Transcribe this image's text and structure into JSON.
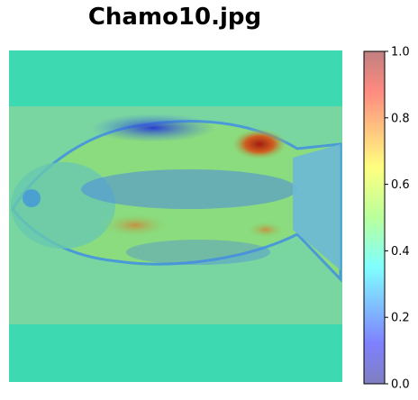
{
  "title": "Chamo10.jpg",
  "chart_data": {
    "type": "heatmap",
    "title": "Chamo10.jpg",
    "image_description": "Fish photograph overlaid with a jet-colormap activation heatmap (alpha ~0.5)",
    "colorbar": {
      "colormap": "jet",
      "alpha": 0.5,
      "range": [
        0.0,
        1.0
      ],
      "ticks": [
        0.0,
        0.2,
        0.4,
        0.6,
        0.8,
        1.0
      ],
      "tick_labels": [
        "0.0",
        "0.2",
        "0.4",
        "0.6",
        "0.8",
        "1.0"
      ]
    },
    "hotspots": [
      {
        "region": "dorsal area behind head (upper back near tail)",
        "value": 0.95
      },
      {
        "region": "mid body lower section",
        "value": 0.8
      },
      {
        "region": "lower rear fin area",
        "value": 0.75
      },
      {
        "region": "dorsal fin top",
        "value": 0.1
      }
    ],
    "background_value": 0.4,
    "axes_visible": false
  },
  "colors": {
    "background_overlay": "#3dd9b0",
    "body_green": "#7ee07a",
    "hot_red": "#b0301e",
    "cool_blue": "#3a5fd8"
  }
}
